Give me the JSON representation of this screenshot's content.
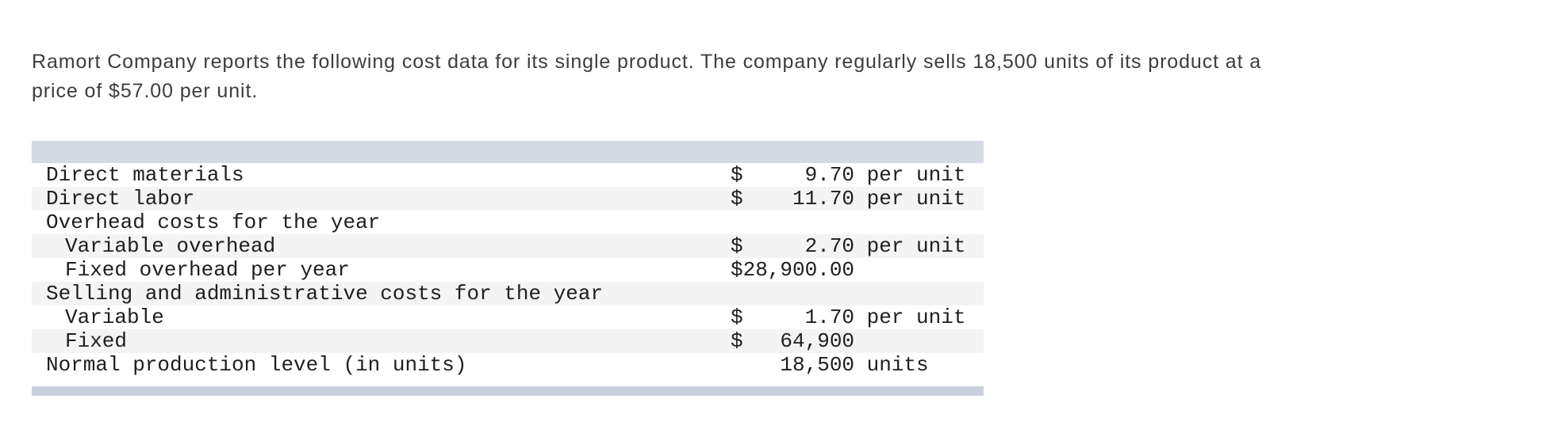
{
  "intro": {
    "line1": "Ramort Company reports the following cost data for its single product. The company regularly sells 18,500 units of its product at a",
    "line2": "price of $57.00 per unit.",
    "full_text": "Ramort Company reports the following cost data for its single product. The company regularly sells 18,500 units of its product at a price of $57.00 per unit."
  },
  "cost_table": {
    "header_bar_color": "#d5d9e4",
    "footer_bar_color": "#cbd1dc",
    "stripe_color": "#f4f4f4",
    "rows": [
      {
        "label": "Direct materials",
        "indent": 0,
        "value": "$     9.70 per unit"
      },
      {
        "label": "Direct labor",
        "indent": 0,
        "value": "$    11.70 per unit"
      },
      {
        "label": "Overhead costs for the year",
        "indent": 0,
        "value": ""
      },
      {
        "label": "Variable overhead",
        "indent": 1,
        "value": "$     2.70 per unit"
      },
      {
        "label": "Fixed overhead per year",
        "indent": 1,
        "value": "$28,900.00"
      },
      {
        "label": "Selling and administrative costs for the year",
        "indent": 0,
        "value": ""
      },
      {
        "label": "Variable",
        "indent": 1,
        "value": "$     1.70 per unit"
      },
      {
        "label": "Fixed",
        "indent": 1,
        "value": "$   64,900"
      },
      {
        "label": "Normal production level (in units)",
        "indent": 0,
        "value": "    18,500 units"
      }
    ]
  }
}
